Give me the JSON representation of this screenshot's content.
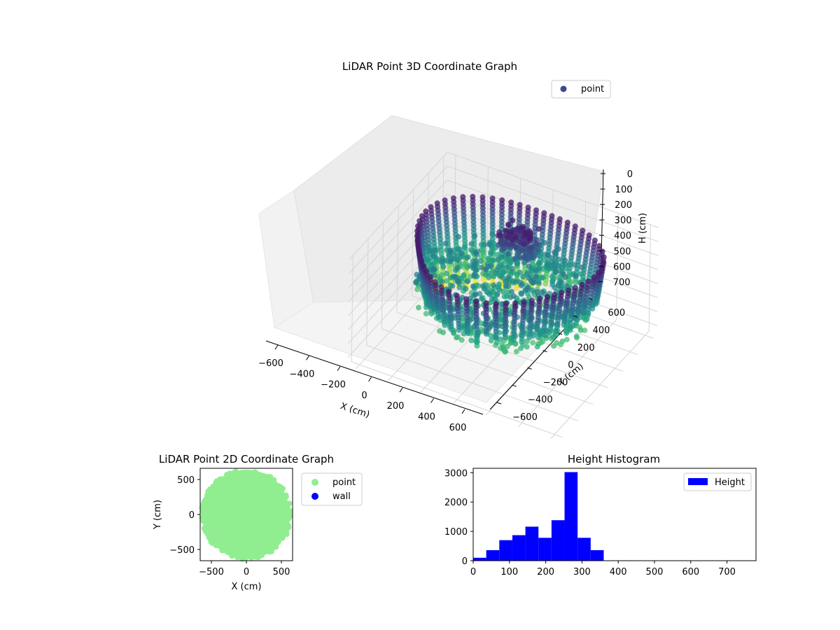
{
  "chart_data": [
    {
      "type": "scatter",
      "projection": "3d",
      "title": "LiDAR Point 3D Coordinate Graph",
      "xlabel": "X (cm)",
      "ylabel": "Y (cm)",
      "zlabel": "H (cm)",
      "xlim": [
        -650,
        650
      ],
      "ylim": [
        -650,
        650
      ],
      "zlim": [
        0,
        760
      ],
      "z_inverted": true,
      "x_ticks": [
        "−600",
        "−400",
        "−200",
        "0",
        "200",
        "400",
        "600"
      ],
      "y_ticks": [
        "−600",
        "−400",
        "−200",
        "0",
        "200",
        "400",
        "600"
      ],
      "z_ticks": [
        "0",
        "100",
        "200",
        "300",
        "400",
        "500",
        "600",
        "700"
      ],
      "colormap": "viridis",
      "grid": true,
      "legend": {
        "position": "top-right",
        "entries": [
          {
            "label": "point",
            "color": "#3e4989"
          }
        ]
      }
    },
    {
      "type": "scatter",
      "title": "LiDAR Point 2D Coordinate Graph",
      "xlabel": "X (cm)",
      "ylabel": "Y (cm)",
      "xlim": [
        -660,
        660
      ],
      "ylim": [
        -660,
        660
      ],
      "x_ticks": [
        "−500",
        "0",
        "500"
      ],
      "y_ticks": [
        "−500",
        "0",
        "500"
      ],
      "legend": {
        "position": "outside-right",
        "entries": [
          {
            "label": "point",
            "color": "#90ee90"
          },
          {
            "label": "wall",
            "color": "#0000ff"
          }
        ]
      }
    },
    {
      "type": "bar",
      "title": "Height Histogram",
      "xlim": [
        0,
        780
      ],
      "ylim": [
        0,
        3150
      ],
      "x_ticks": [
        "0",
        "100",
        "200",
        "300",
        "400",
        "500",
        "600",
        "700"
      ],
      "y_ticks": [
        "0",
        "1000",
        "2000",
        "3000"
      ],
      "bin_width": 36,
      "bins": [
        {
          "start": 0,
          "end": 36,
          "count": 100
        },
        {
          "start": 36,
          "end": 72,
          "count": 360
        },
        {
          "start": 72,
          "end": 108,
          "count": 700
        },
        {
          "start": 108,
          "end": 144,
          "count": 870
        },
        {
          "start": 144,
          "end": 180,
          "count": 1160
        },
        {
          "start": 180,
          "end": 216,
          "count": 780
        },
        {
          "start": 216,
          "end": 252,
          "count": 1380
        },
        {
          "start": 252,
          "end": 288,
          "count": 3020
        },
        {
          "start": 288,
          "end": 324,
          "count": 780
        },
        {
          "start": 324,
          "end": 360,
          "count": 360
        }
      ],
      "color": "#0000ff",
      "legend": {
        "position": "top-right",
        "entries": [
          {
            "label": "Height",
            "color": "#0000ff"
          }
        ]
      }
    }
  ]
}
